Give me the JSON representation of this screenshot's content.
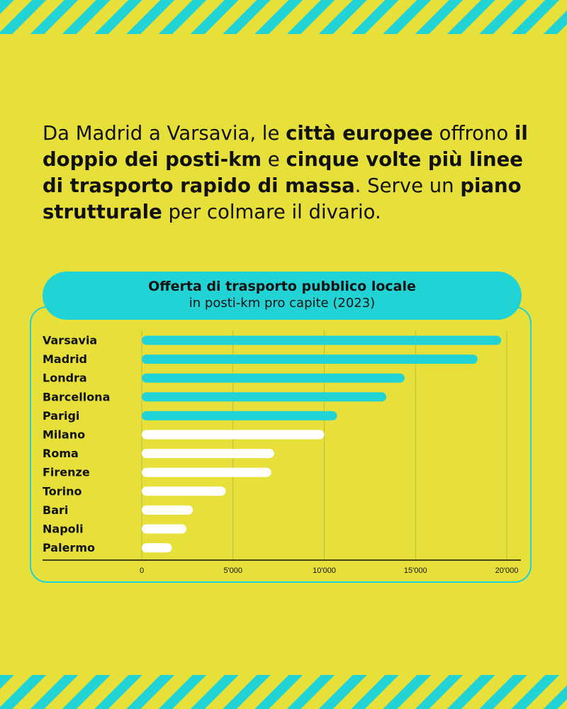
{
  "intro": {
    "parts": [
      {
        "text": "Da Madrid a Varsavia, le ",
        "bold": false
      },
      {
        "text": "città europee",
        "bold": true
      },
      {
        "text": " offrono ",
        "bold": false
      },
      {
        "text": "il doppio dei posti-km",
        "bold": true
      },
      {
        "text": " e ",
        "bold": false
      },
      {
        "text": "cinque volte più linee di trasporto rapido di massa",
        "bold": true
      },
      {
        "text": ". Serve un ",
        "bold": false
      },
      {
        "text": "piano strutturale",
        "bold": true
      },
      {
        "text": " per colmare il divario.",
        "bold": false
      }
    ]
  },
  "colors": {
    "background": "#E7E03A",
    "accent": "#22D3D6",
    "italy_bar": "#FFFFFF",
    "text": "#111111",
    "gridline": "#B9B23A"
  },
  "chart_data": {
    "type": "bar",
    "orientation": "horizontal",
    "title": "Offerta di trasporto pubblico locale",
    "subtitle": "in posti-km pro capite (2023)",
    "categories": [
      "Varsavia",
      "Madrid",
      "Londra",
      "Barcellona",
      "Parigi",
      "Milano",
      "Roma",
      "Firenze",
      "Torino",
      "Bari",
      "Napoli",
      "Palermo"
    ],
    "values": [
      19700,
      18400,
      14400,
      13400,
      10700,
      10000,
      7250,
      7100,
      4600,
      2800,
      2450,
      1650
    ],
    "highlight": [
      true,
      true,
      true,
      true,
      true,
      false,
      false,
      false,
      false,
      false,
      false,
      false
    ],
    "xlim": [
      0,
      20000
    ],
    "xticks": [
      0,
      5000,
      10000,
      15000,
      20000
    ],
    "xtick_labels": [
      "0",
      "5'000",
      "10'000",
      "15'000",
      "20'000"
    ],
    "grid": true
  }
}
